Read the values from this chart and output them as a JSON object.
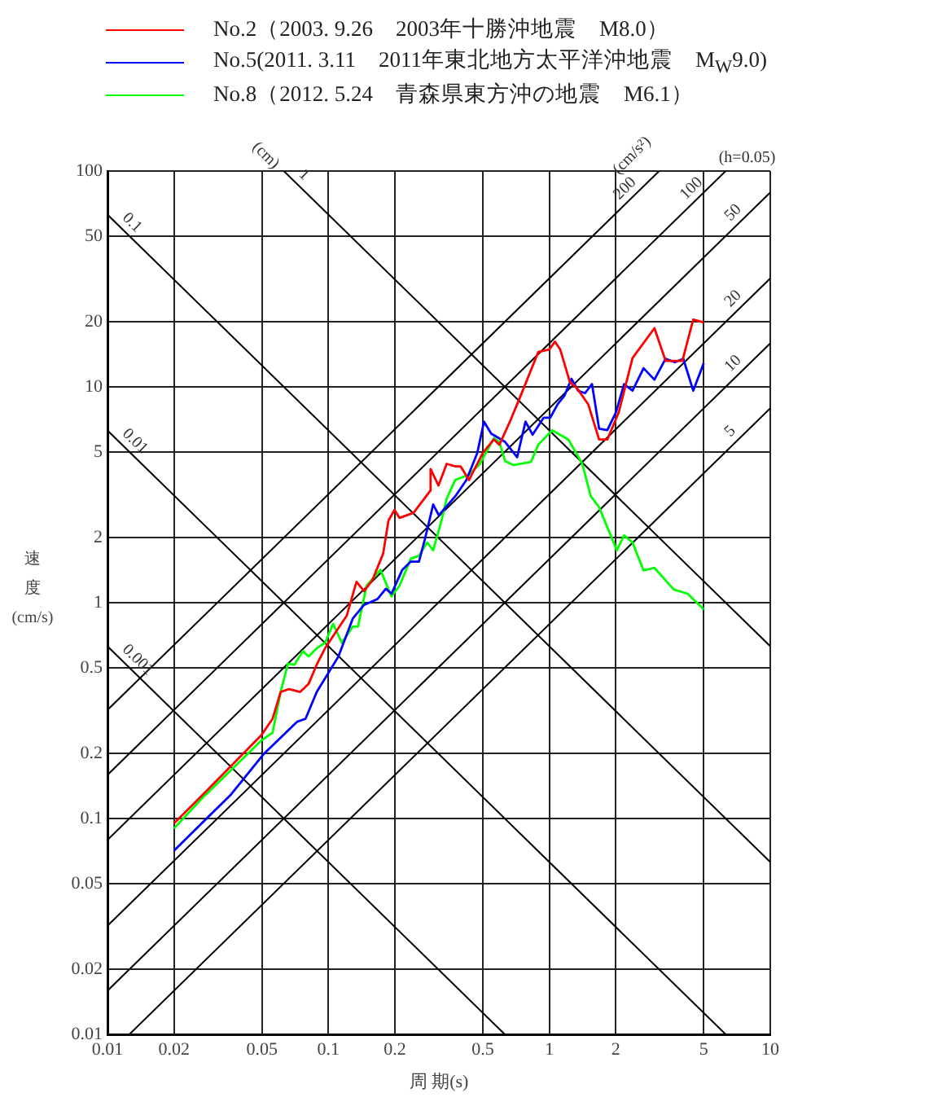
{
  "chart_data": {
    "type": "line",
    "xlabel": "周 期(s)",
    "ylabel": "速度(cm/s)",
    "legend": "top",
    "grid": true,
    "log": "xy",
    "xlim": [
      0.01,
      10
    ],
    "ylim": [
      0.01,
      100
    ],
    "xticks": [
      0.01,
      0.02,
      0.05,
      0.1,
      0.2,
      0.5,
      1,
      2,
      5,
      10
    ],
    "yticks": [
      0.01,
      0.02,
      0.05,
      0.1,
      0.2,
      0.5,
      1,
      2,
      5,
      10,
      20,
      50,
      100
    ],
    "annotations": [
      "(cm)",
      "(cm/s²)",
      "(h=0.05)"
    ],
    "series": [
      {
        "name": "No.2（2003. 9.26　2003年十勝沖地震　M8.0）",
        "color": "#ff0000",
        "x": [
          0.02,
          0.027,
          0.0497,
          0.0559,
          0.0608,
          0.0664,
          0.0745,
          0.0813,
          0.0886,
          0.0966,
          0.108,
          0.121,
          0.134,
          0.145,
          0.158,
          0.177,
          0.187,
          0.199,
          0.21,
          0.243,
          0.289,
          0.29,
          0.315,
          0.343,
          0.375,
          0.397,
          0.433,
          0.5,
          0.561,
          0.594,
          0.667,
          0.75,
          0.891,
          1.0,
          1.06,
          1.12,
          1.24,
          1.33,
          1.5,
          1.68,
          1.83,
          2.06,
          2.38,
          2.99,
          3.36,
          4.0,
          4.48,
          5.0
        ],
        "values": [
          0.095,
          0.129,
          0.243,
          0.29,
          0.386,
          0.398,
          0.386,
          0.42,
          0.517,
          0.615,
          0.731,
          0.87,
          1.25,
          1.13,
          1.27,
          1.69,
          2.4,
          2.69,
          2.47,
          2.61,
          3.3,
          4.16,
          3.49,
          4.4,
          4.28,
          4.28,
          3.7,
          4.94,
          5.71,
          5.39,
          7.0,
          9.36,
          14.5,
          14.9,
          16.2,
          14.9,
          10.5,
          9.9,
          8.3,
          5.7,
          5.7,
          7.6,
          13.6,
          18.7,
          13.2,
          13.2,
          20.5,
          19.9
        ]
      },
      {
        "name": "No.5(2011. 3.11　2011年東北地方太平洋沖地震　M$_{W}$9.0)",
        "color": "#0000ff",
        "x": [
          0.02,
          0.0362,
          0.0512,
          0.0723,
          0.0788,
          0.0886,
          0.111,
          0.129,
          0.145,
          0.167,
          0.182,
          0.193,
          0.216,
          0.236,
          0.257,
          0.273,
          0.298,
          0.316,
          0.375,
          0.421,
          0.472,
          0.506,
          0.546,
          0.63,
          0.715,
          0.78,
          0.84,
          0.943,
          1.01,
          1.09,
          1.17,
          1.26,
          1.35,
          1.45,
          1.56,
          1.68,
          1.83,
          2.0,
          2.18,
          2.38,
          2.67,
          2.99,
          3.36,
          3.7,
          4.04,
          4.48,
          5.0
        ],
        "values": [
          0.071,
          0.129,
          0.2,
          0.281,
          0.29,
          0.386,
          0.563,
          0.845,
          0.977,
          1.04,
          1.16,
          1.1,
          1.42,
          1.55,
          1.55,
          1.96,
          2.85,
          2.54,
          3.11,
          3.7,
          4.94,
          6.9,
          6.07,
          5.56,
          4.72,
          6.9,
          6.0,
          7.2,
          7.2,
          8.3,
          9.1,
          10.9,
          9.6,
          9.35,
          10.3,
          6.4,
          6.3,
          7.6,
          10.3,
          9.6,
          12.2,
          10.8,
          13.5,
          13.0,
          13.5,
          9.6,
          12.9
        ]
      },
      {
        "name": "No.8（2012. 5.24　青森県東方沖の地震　M6.1）",
        "color": "#00ff00",
        "x": [
          0.02,
          0.027,
          0.0497,
          0.0559,
          0.0608,
          0.0656,
          0.0703,
          0.0766,
          0.0813,
          0.0886,
          0.0966,
          0.105,
          0.115,
          0.129,
          0.136,
          0.149,
          0.172,
          0.193,
          0.21,
          0.236,
          0.257,
          0.28,
          0.298,
          0.325,
          0.343,
          0.375,
          0.433,
          0.485,
          0.561,
          0.594,
          0.63,
          0.687,
          0.826,
          0.891,
          1.03,
          1.22,
          1.41,
          1.54,
          1.68,
          2.02,
          2.18,
          2.38,
          2.67,
          2.99,
          3.66,
          4.23,
          5.0
        ],
        "values": [
          0.09,
          0.125,
          0.23,
          0.25,
          0.386,
          0.522,
          0.516,
          0.597,
          0.563,
          0.615,
          0.652,
          0.798,
          0.652,
          0.775,
          0.775,
          1.2,
          1.42,
          1.07,
          1.2,
          1.6,
          1.65,
          1.9,
          1.75,
          2.4,
          3.03,
          3.7,
          3.92,
          4.4,
          5.78,
          5.56,
          4.54,
          4.34,
          4.49,
          5.39,
          6.3,
          5.7,
          4.4,
          3.11,
          2.77,
          1.75,
          2.05,
          1.9,
          1.41,
          1.45,
          1.15,
          1.1,
          0.93
        ]
      },
      {
        "name": "0.1",
        "type": "line",
        "color": "#000000",
        "x": [
          0.01,
          10
        ],
        "values": [
          62.83,
          0.06283
        ]
      },
      {
        "name": "1",
        "type": "line",
        "color": "#000000",
        "x": [
          0.06283,
          10
        ],
        "values": [
          100,
          0.6283
        ]
      },
      {
        "name": "0.01",
        "type": "line",
        "color": "#000000",
        "x": [
          0.01,
          6.283
        ],
        "values": [
          6.283,
          0.01
        ]
      },
      {
        "name": "0.001",
        "type": "line",
        "color": "#000000",
        "x": [
          0.01,
          0.6283
        ],
        "values": [
          0.6283,
          0.01
        ]
      },
      {
        "name": "200",
        "type": "line",
        "color": "#000000",
        "x": [
          0.01,
          3.1416
        ],
        "values": [
          0.3183,
          100
        ]
      },
      {
        "name": "100",
        "type": "line",
        "color": "#000000",
        "x": [
          0.01,
          6.283
        ],
        "values": [
          0.1592,
          100
        ]
      },
      {
        "name": "50",
        "type": "line",
        "color": "#000000",
        "x": [
          0.01,
          10
        ],
        "values": [
          0.07958,
          79.58
        ]
      },
      {
        "name": "20",
        "type": "line",
        "color": "#000000",
        "x": [
          0.01,
          10
        ],
        "values": [
          0.03183,
          31.83
        ]
      },
      {
        "name": "10",
        "type": "line",
        "color": "#000000",
        "x": [
          0.01,
          10
        ],
        "values": [
          0.01592,
          15.92
        ]
      },
      {
        "name": "5",
        "type": "line",
        "color": "#000000",
        "x": [
          0.01257,
          10
        ],
        "values": [
          0.01,
          7.958
        ]
      }
    ]
  }
}
